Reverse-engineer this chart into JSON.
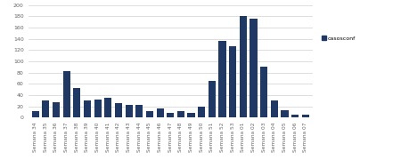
{
  "categories": [
    "Semana 34",
    "Semana 35",
    "Semana 36",
    "Semana 37",
    "Semana 38",
    "Semana 39",
    "Semana 40",
    "Semana 41",
    "Semana 42",
    "Semana 43",
    "Semana 44",
    "Semana 45",
    "Semana 46",
    "Semana 47",
    "Semana 48",
    "Semana 49",
    "Semana 50",
    "Semana 51",
    "Semana 52",
    "Semana 53",
    "Semana 01",
    "Semana 02",
    "Semana 03",
    "Semana 04",
    "Semana 05",
    "Semana 06",
    "Semana 07"
  ],
  "values": [
    11,
    30,
    28,
    83,
    52,
    30,
    32,
    35,
    25,
    23,
    23,
    12,
    17,
    9,
    11,
    8,
    19,
    65,
    137,
    127,
    180,
    175,
    90,
    31,
    13,
    6,
    5
  ],
  "bar_color": "#1F3864",
  "legend_label": "casosconf",
  "ylim": [
    0,
    200
  ],
  "yticks": [
    0,
    20,
    40,
    60,
    80,
    100,
    120,
    140,
    160,
    180,
    200
  ],
  "background_color": "#ffffff",
  "grid_color": "#d0d0d0",
  "label_fontsize": 4.2,
  "ytick_fontsize": 4.5,
  "legend_fontsize": 4.5
}
